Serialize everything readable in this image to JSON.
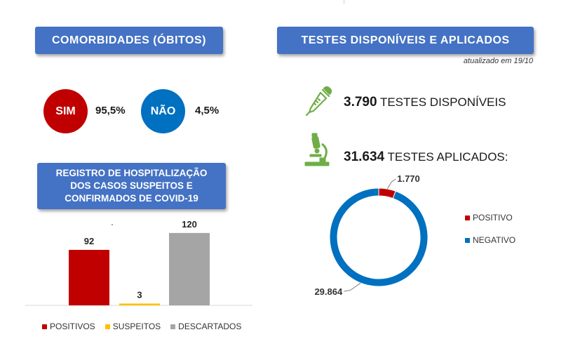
{
  "comorbidades": {
    "title": "COMORBIDADES (ÓBITOS)",
    "sim_label": "SIM",
    "sim_value": "95,5%",
    "nao_label": "NÃO",
    "nao_value": "4,5%",
    "colors": {
      "sim": "#c00000",
      "nao": "#0070c0"
    }
  },
  "hospitalizacao": {
    "title_lines": [
      "REGISTRO DE HOSPITALIZAÇÃO",
      "DOS CASOS SUSPEITOS E",
      "CONFIRMADOS DE COVID-19"
    ]
  },
  "testes": {
    "title": "TESTES DISPONÍVEIS E APLICADOS",
    "updated": "atualizado em 19/10",
    "disponiveis_value": "3.790",
    "disponiveis_label": " TESTES DISPONÍVEIS",
    "aplicados_value": "31.634",
    "aplicados_label": " TESTES APLICADOS:",
    "icons": {
      "pipette": "pipette-icon",
      "microscope": "microscope-icon"
    },
    "icon_color": "#70ad47"
  },
  "chart_data": [
    {
      "type": "bar",
      "title": "REGISTRO DE HOSPITALIZAÇÃO DOS CASOS SUSPEITOS E CONFIRMADOS DE COVID-19",
      "categories": [
        "POSITIVOS",
        "SUSPEITOS",
        "DESCARTADOS"
      ],
      "values": [
        92,
        3,
        120
      ],
      "value_labels": [
        "92",
        "3",
        "120"
      ],
      "colors": [
        "#c00000",
        "#ffc000",
        "#a5a5a5"
      ],
      "ylim": [
        0,
        135
      ],
      "legend": [
        "POSITIVOS",
        "SUSPEITOS",
        "DESCARTADOS"
      ],
      "legend_position": "bottom"
    },
    {
      "type": "pie",
      "variant": "doughnut",
      "labels": [
        "POSITIVO",
        "NEGATIVO"
      ],
      "values": [
        1770,
        29864
      ],
      "value_labels": [
        "1.770",
        "29.864"
      ],
      "colors": [
        "#c00000",
        "#0070c0"
      ],
      "legend_position": "right"
    }
  ]
}
